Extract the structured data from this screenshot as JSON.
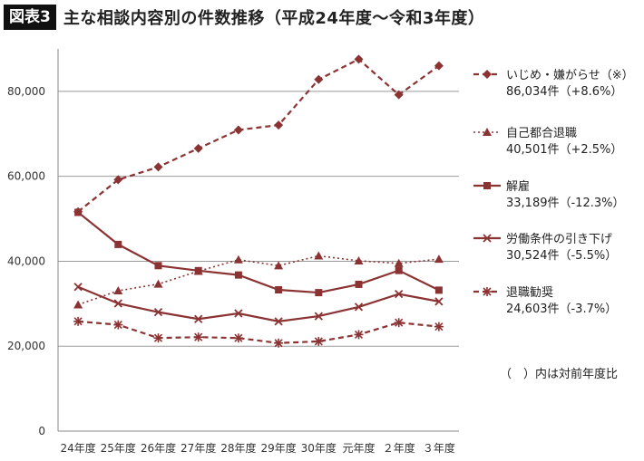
{
  "header": {
    "badge": "図表3",
    "title": "主な相談内容別の件数推移（平成24年度〜令和3年度）"
  },
  "colors": {
    "series": "#8b3333",
    "grid": "#999999",
    "axis": "#888888"
  },
  "chart_data": {
    "type": "line",
    "title": "主な相談内容別の件数推移（平成24年度〜令和3年度）",
    "categories": [
      "24年度",
      "25年度",
      "26年度",
      "27年度",
      "28年度",
      "29年度",
      "30年度",
      "元年度",
      "２年度",
      "３年度"
    ],
    "ylim": [
      0,
      90000
    ],
    "yticks": [
      0,
      20000,
      40000,
      60000,
      80000
    ],
    "ytick_labels": [
      "0",
      "20,000",
      "40,000",
      "60,000",
      "80,000"
    ],
    "grid": true,
    "legend_position": "right",
    "series": [
      {
        "name": "いじめ・嫌がらせ（※）",
        "value_label": "86,034件（+8.6%）",
        "marker": "diamond",
        "dash": "dashed",
        "values": [
          51670,
          59197,
          62191,
          66566,
          70917,
          72067,
          82797,
          87570,
          79190,
          86034
        ]
      },
      {
        "name": "自己都合退職",
        "value_label": "40,501件（+2.5%）",
        "marker": "triangle",
        "dash": "dotted",
        "values": [
          29763,
          33049,
          34626,
          37648,
          40364,
          38954,
          41258,
          40108,
          39498,
          40501
        ]
      },
      {
        "name": "解雇",
        "value_label": "33,189件（-12.3%）",
        "marker": "square",
        "dash": "solid",
        "values": [
          51515,
          43956,
          38966,
          37787,
          36760,
          33269,
          32614,
          34561,
          37826,
          33189
        ]
      },
      {
        "name": "労働条件の引き下げ",
        "value_label": "30,524件（-5.5%）",
        "marker": "x",
        "dash": "solid",
        "values": [
          33955,
          30067,
          28015,
          26392,
          27723,
          25841,
          27067,
          29239,
          32284,
          30524
        ]
      },
      {
        "name": "退職勧奨",
        "value_label": "24,603件（-3.7%）",
        "marker": "star",
        "dash": "dashed",
        "values": [
          25838,
          25041,
          21928,
          22134,
          21915,
          20736,
          21125,
          22731,
          25546,
          24603
        ]
      }
    ],
    "note": "（　）内は対前年度比"
  }
}
